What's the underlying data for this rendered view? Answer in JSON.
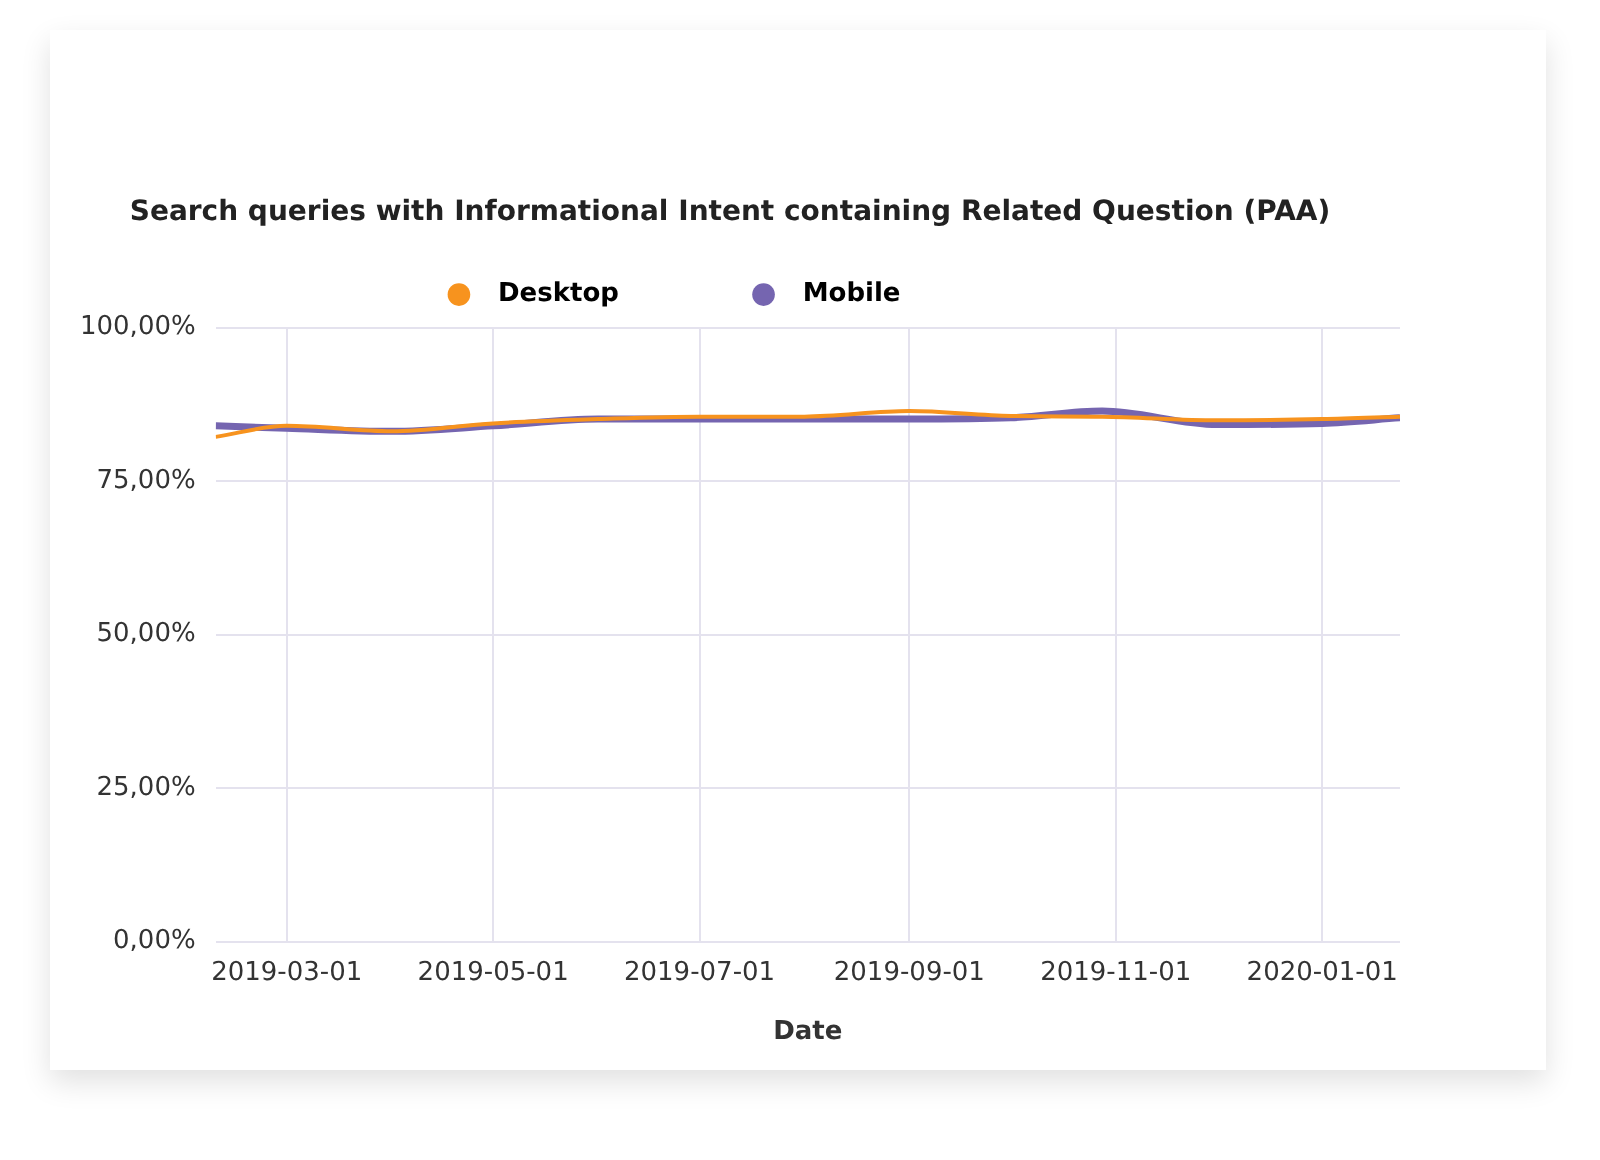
{
  "chart_data": {
    "type": "line",
    "title": "Search queries with Informational Intent containing Related Question (PAA)",
    "xlabel": "Date",
    "x": [
      "2019-02-08",
      "2019-03-01",
      "2019-04-01",
      "2019-05-01",
      "2019-06-01",
      "2019-07-01",
      "2019-08-01",
      "2019-09-01",
      "2019-10-01",
      "2019-10-28",
      "2019-12-01",
      "2020-01-01",
      "2020-01-24"
    ],
    "series": [
      {
        "name": "Desktop",
        "color": "#f7931e",
        "values": [
          82.2,
          84.0,
          83.1,
          84.4,
          85.1,
          85.5,
          85.5,
          86.4,
          85.6,
          85.5,
          84.9,
          85.1,
          85.5
        ]
      },
      {
        "name": "Mobile",
        "color": "#7565b0",
        "values": [
          84.0,
          83.6,
          83.1,
          84.0,
          85.1,
          85.1,
          85.1,
          85.1,
          85.3,
          86.4,
          84.2,
          84.4,
          85.3
        ]
      }
    ],
    "xlim": [
      "2019-02-08",
      "2020-01-24"
    ],
    "xticks": [
      "2019-03-01",
      "2019-05-01",
      "2019-07-01",
      "2019-09-01",
      "2019-11-01",
      "2020-01-01"
    ],
    "ylim": [
      0,
      100
    ],
    "yticks": [
      {
        "value": 0,
        "label": "0,00%"
      },
      {
        "value": 25,
        "label": "25,00%"
      },
      {
        "value": 50,
        "label": "50,00%"
      },
      {
        "value": 75,
        "label": "75,00%"
      },
      {
        "value": 100,
        "label": "100,00%"
      }
    ],
    "grid": true,
    "legend": "top",
    "marker": "none",
    "line_style": "solid"
  }
}
